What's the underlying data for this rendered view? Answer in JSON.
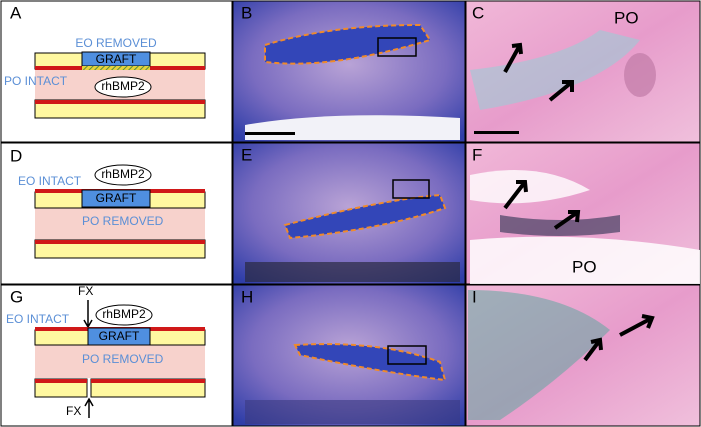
{
  "rows": [
    {
      "schematic": {
        "label": "A",
        "top_text": "EO REMOVED",
        "graft": "GRAFT",
        "side_text": "PO INTACT",
        "factor": "rhBMP2"
      },
      "low_mag": {
        "label": "B"
      },
      "high_mag": {
        "label": "C",
        "annotation": "PO"
      }
    },
    {
      "schematic": {
        "label": "D",
        "top_text": "EO INTACT",
        "factor": "rhBMP2",
        "graft": "GRAFT",
        "side_text": "PO REMOVED"
      },
      "low_mag": {
        "label": "E"
      },
      "high_mag": {
        "label": "F",
        "annotation": "PO"
      }
    },
    {
      "schematic": {
        "label": "G",
        "fracture_top": "FX",
        "top_text": "EO INTACT",
        "factor": "rhBMP2",
        "graft": "GRAFT",
        "side_text": "PO REMOVED",
        "fracture_bottom": "FX"
      },
      "low_mag": {
        "label": "H"
      },
      "high_mag": {
        "label": "I"
      }
    }
  ]
}
